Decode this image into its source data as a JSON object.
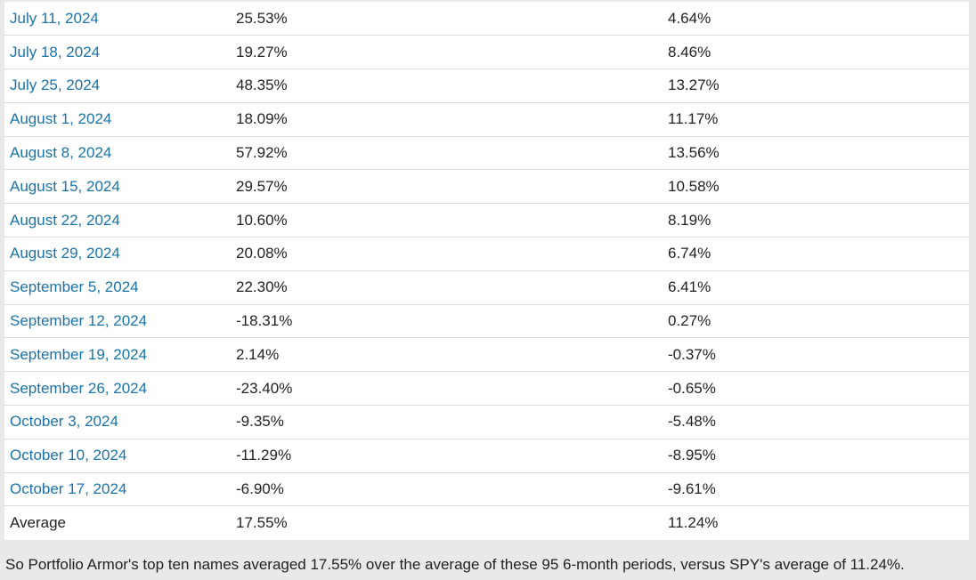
{
  "rows": [
    {
      "date": "July 11, 2024",
      "pa": "25.53%",
      "spy": "4.64%"
    },
    {
      "date": "July 18, 2024",
      "pa": "19.27%",
      "spy": "8.46%"
    },
    {
      "date": "July 25, 2024",
      "pa": "48.35%",
      "spy": "13.27%"
    },
    {
      "date": "August 1, 2024",
      "pa": "18.09%",
      "spy": "11.17%"
    },
    {
      "date": "August 8, 2024",
      "pa": "57.92%",
      "spy": "13.56%"
    },
    {
      "date": "August 15, 2024",
      "pa": "29.57%",
      "spy": "10.58%"
    },
    {
      "date": "August 22, 2024",
      "pa": "10.60%",
      "spy": "8.19%"
    },
    {
      "date": "August 29, 2024",
      "pa": "20.08%",
      "spy": "6.74%"
    },
    {
      "date": "September 5, 2024",
      "pa": "22.30%",
      "spy": "6.41%"
    },
    {
      "date": "September 12, 2024",
      "pa": "-18.31%",
      "spy": "0.27%"
    },
    {
      "date": "September 19, 2024",
      "pa": "2.14%",
      "spy": "-0.37%"
    },
    {
      "date": "September 26, 2024",
      "pa": "-23.40%",
      "spy": "-0.65%"
    },
    {
      "date": "October 3, 2024",
      "pa": "-9.35%",
      "spy": "-5.48%"
    },
    {
      "date": "October 10, 2024",
      "pa": "-11.29%",
      "spy": "-8.95%"
    },
    {
      "date": "October 17, 2024",
      "pa": "-6.90%",
      "spy": "-9.61%"
    }
  ],
  "average": {
    "label": "Average",
    "pa": "17.55%",
    "spy": "11.24%"
  },
  "summary": "So Portfolio Armor's top ten names averaged 17.55% over the average of these 95 6-month periods, versus SPY's average of 11.24%.",
  "colors": {
    "link": "#1a73a8",
    "page_bg": "#e9e9e9",
    "table_bg": "#ffffff"
  }
}
